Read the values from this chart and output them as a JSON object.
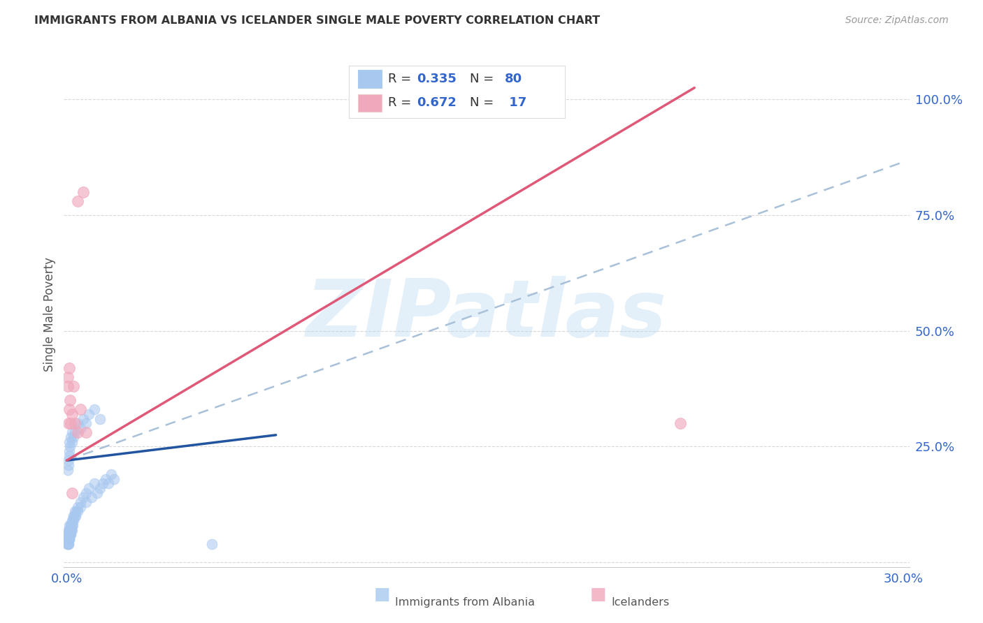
{
  "title": "IMMIGRANTS FROM ALBANIA VS ICELANDER SINGLE MALE POVERTY CORRELATION CHART",
  "source": "Source: ZipAtlas.com",
  "ylabel_label": "Single Male Poverty",
  "xlim": [
    -0.001,
    0.302
  ],
  "ylim": [
    -0.01,
    1.08
  ],
  "xtick_positions": [
    0.0,
    0.05,
    0.1,
    0.15,
    0.2,
    0.25,
    0.3
  ],
  "xtick_labels": [
    "0.0%",
    "",
    "",
    "",
    "",
    "",
    "30.0%"
  ],
  "ytick_positions": [
    0.0,
    0.25,
    0.5,
    0.75,
    1.0
  ],
  "ytick_labels": [
    "",
    "25.0%",
    "50.0%",
    "75.0%",
    "100.0%"
  ],
  "legend_r1": "0.335",
  "legend_n1": "80",
  "legend_r2": "0.672",
  "legend_n2": "17",
  "watermark": "ZIPatlas",
  "blue_color": "#A8C8F0",
  "pink_color": "#F0A8BC",
  "blue_line_color": "#2255A0",
  "pink_line_color": "#E05878",
  "blue_dash_color": "#A8C0D8",
  "legend_text_color": "#3366CC",
  "albania_x": [
    0.0002,
    0.0003,
    0.0004,
    0.0004,
    0.0005,
    0.0005,
    0.0005,
    0.0006,
    0.0006,
    0.0006,
    0.0007,
    0.0007,
    0.0007,
    0.0008,
    0.0008,
    0.0008,
    0.0009,
    0.0009,
    0.001,
    0.001,
    0.001,
    0.001,
    0.0012,
    0.0012,
    0.0013,
    0.0013,
    0.0014,
    0.0015,
    0.0015,
    0.0016,
    0.0017,
    0.0018,
    0.002,
    0.002,
    0.0021,
    0.0022,
    0.0023,
    0.0025,
    0.0025,
    0.003,
    0.003,
    0.0032,
    0.0035,
    0.004,
    0.004,
    0.005,
    0.005,
    0.006,
    0.007,
    0.007,
    0.008,
    0.009,
    0.01,
    0.011,
    0.012,
    0.013,
    0.014,
    0.015,
    0.016,
    0.017,
    0.0005,
    0.0006,
    0.0007,
    0.0008,
    0.001,
    0.001,
    0.0012,
    0.0015,
    0.002,
    0.002,
    0.0025,
    0.003,
    0.004,
    0.005,
    0.006,
    0.007,
    0.008,
    0.01,
    0.012,
    0.052
  ],
  "albania_y": [
    0.04,
    0.05,
    0.05,
    0.06,
    0.04,
    0.05,
    0.06,
    0.04,
    0.05,
    0.06,
    0.04,
    0.05,
    0.07,
    0.05,
    0.06,
    0.07,
    0.05,
    0.06,
    0.05,
    0.06,
    0.07,
    0.08,
    0.06,
    0.07,
    0.06,
    0.08,
    0.07,
    0.06,
    0.08,
    0.07,
    0.08,
    0.07,
    0.08,
    0.09,
    0.08,
    0.09,
    0.1,
    0.09,
    0.1,
    0.1,
    0.11,
    0.1,
    0.11,
    0.12,
    0.11,
    0.13,
    0.12,
    0.14,
    0.15,
    0.13,
    0.16,
    0.14,
    0.17,
    0.15,
    0.16,
    0.17,
    0.18,
    0.17,
    0.19,
    0.18,
    0.2,
    0.22,
    0.21,
    0.23,
    0.24,
    0.26,
    0.25,
    0.27,
    0.28,
    0.26,
    0.27,
    0.28,
    0.3,
    0.29,
    0.31,
    0.3,
    0.32,
    0.33,
    0.31,
    0.04
  ],
  "iceland_x": [
    0.0004,
    0.0005,
    0.0006,
    0.0008,
    0.001,
    0.0012,
    0.0015,
    0.002,
    0.0025,
    0.003,
    0.004,
    0.005,
    0.006,
    0.007,
    0.22,
    0.004,
    0.002
  ],
  "iceland_y": [
    0.38,
    0.4,
    0.3,
    0.42,
    0.33,
    0.35,
    0.3,
    0.32,
    0.38,
    0.3,
    0.78,
    0.33,
    0.8,
    0.28,
    0.3,
    0.28,
    0.15
  ],
  "albania_reg": [
    0.0,
    0.22,
    0.075,
    0.275
  ],
  "albania_dash": [
    0.0,
    0.22,
    0.3,
    0.865
  ],
  "iceland_reg": [
    0.0,
    0.22,
    0.225,
    1.025
  ]
}
